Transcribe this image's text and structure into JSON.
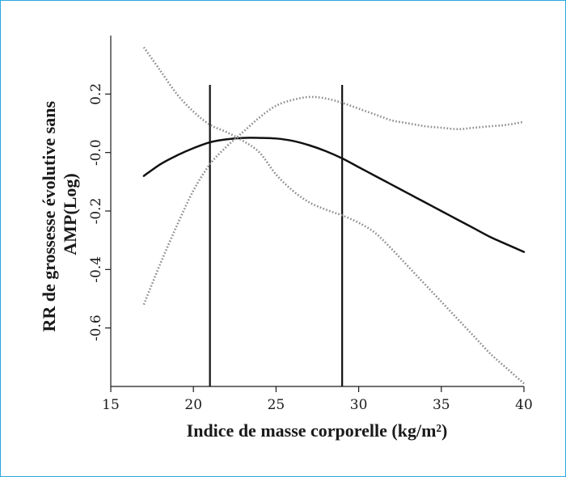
{
  "chart_data": {
    "type": "line",
    "xlabel": "Indice de masse corporelle (kg/m²)",
    "ylabel_lines": [
      "RR de grossesse évolutive sans",
      "AMP(Log)"
    ],
    "xlim": [
      15,
      40
    ],
    "ylim": [
      -0.8,
      0.4
    ],
    "x_ticks": [
      15,
      20,
      25,
      30,
      35,
      40
    ],
    "y_ticks": [
      0.2,
      -0.0,
      -0.2,
      -0.4,
      -0.6
    ],
    "y_tick_labels": [
      "0.2",
      "-0.0",
      "-0.2",
      "-0.4",
      "-0.6"
    ],
    "grid": false,
    "legend": "none",
    "reference_lines_x": [
      21,
      29
    ],
    "colors": {
      "estimate": "#111111",
      "ci": "#8c8c8c",
      "reference": "#111111",
      "frame": "#29a8e0"
    },
    "series": [
      {
        "role": "estimate",
        "x": [
          17,
          18,
          19,
          20,
          21,
          22,
          23,
          24,
          25,
          26,
          27,
          28,
          29,
          30,
          31,
          32,
          33,
          34,
          35,
          36,
          37,
          38,
          39,
          40
        ],
        "y": [
          -0.08,
          -0.04,
          -0.01,
          0.015,
          0.035,
          0.045,
          0.05,
          0.05,
          0.048,
          0.04,
          0.025,
          0.005,
          -0.02,
          -0.05,
          -0.08,
          -0.11,
          -0.14,
          -0.17,
          -0.2,
          -0.23,
          -0.26,
          -0.29,
          -0.315,
          -0.34
        ]
      },
      {
        "role": "ci-upper",
        "x": [
          17,
          18,
          19,
          20,
          21,
          22,
          23,
          24,
          25,
          26,
          27,
          28,
          29,
          30,
          31,
          32,
          33,
          34,
          35,
          36,
          37,
          38,
          39,
          40
        ],
        "y": [
          -0.52,
          -0.38,
          -0.25,
          -0.13,
          -0.04,
          0.02,
          0.07,
          0.12,
          0.16,
          0.18,
          0.19,
          0.185,
          0.17,
          0.15,
          0.13,
          0.11,
          0.1,
          0.09,
          0.085,
          0.08,
          0.085,
          0.09,
          0.095,
          0.105
        ]
      },
      {
        "role": "ci-lower",
        "x": [
          17,
          18,
          19,
          20,
          21,
          22,
          23,
          24,
          25,
          26,
          27,
          28,
          29,
          30,
          31,
          32,
          33,
          34,
          35,
          36,
          37,
          38,
          39,
          40
        ],
        "y": [
          0.36,
          0.28,
          0.2,
          0.14,
          0.095,
          0.07,
          0.04,
          0.0,
          -0.075,
          -0.13,
          -0.17,
          -0.195,
          -0.215,
          -0.24,
          -0.275,
          -0.33,
          -0.39,
          -0.45,
          -0.51,
          -0.57,
          -0.63,
          -0.69,
          -0.74,
          -0.79
        ]
      }
    ]
  }
}
